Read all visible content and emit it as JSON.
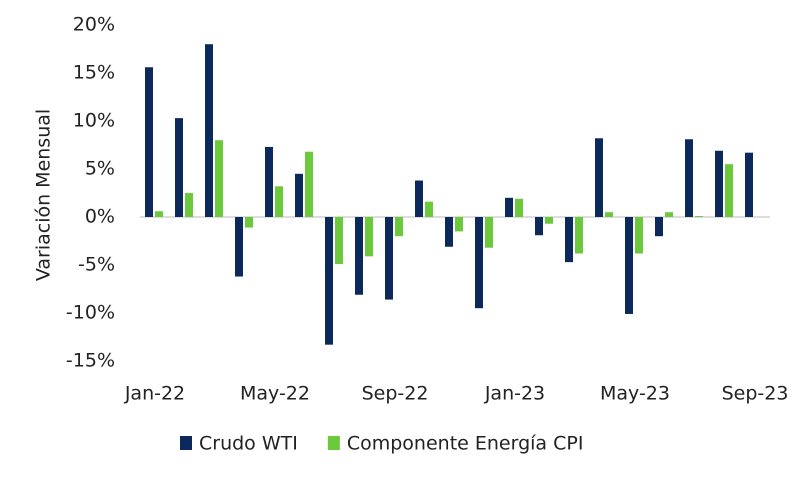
{
  "chart_data": {
    "type": "bar",
    "y_label": "Variación Mensual",
    "categories": [
      "Jan-22",
      null,
      null,
      null,
      "May-22",
      null,
      null,
      null,
      "Sep-22",
      null,
      null,
      null,
      "Jan-23",
      null,
      null,
      null,
      "May-23",
      null,
      null,
      null,
      "Sep-23"
    ],
    "series": [
      {
        "name": "Crudo WTI",
        "color": "#0b2a5b",
        "values": [
          15.6,
          10.3,
          18.0,
          -6.2,
          7.3,
          4.5,
          -13.3,
          -8.1,
          -8.6,
          3.8,
          -3.1,
          -9.5,
          2.0,
          -1.9,
          -4.7,
          8.2,
          -10.1,
          -2.0,
          8.1,
          6.9,
          6.7
        ]
      },
      {
        "name": "Componente Energía CPI",
        "color": "#6cc93c",
        "values": [
          0.6,
          2.5,
          8.0,
          -1.1,
          3.2,
          6.8,
          -4.9,
          -4.1,
          -2.0,
          1.6,
          -1.5,
          -3.2,
          1.9,
          -0.7,
          -3.8,
          0.5,
          -3.8,
          0.5,
          0.1,
          5.5,
          null
        ]
      }
    ],
    "ylim": [
      -15,
      20
    ],
    "yticks": [
      {
        "value": -15,
        "label": "-15%"
      },
      {
        "value": -10,
        "label": "-10%"
      },
      {
        "value": -5,
        "label": "-5%"
      },
      {
        "value": 0,
        "label": "0%"
      },
      {
        "value": 5,
        "label": "5%"
      },
      {
        "value": 10,
        "label": "10%"
      },
      {
        "value": 15,
        "label": "15%"
      },
      {
        "value": 20,
        "label": "20%"
      }
    ],
    "legend": "bottom"
  }
}
